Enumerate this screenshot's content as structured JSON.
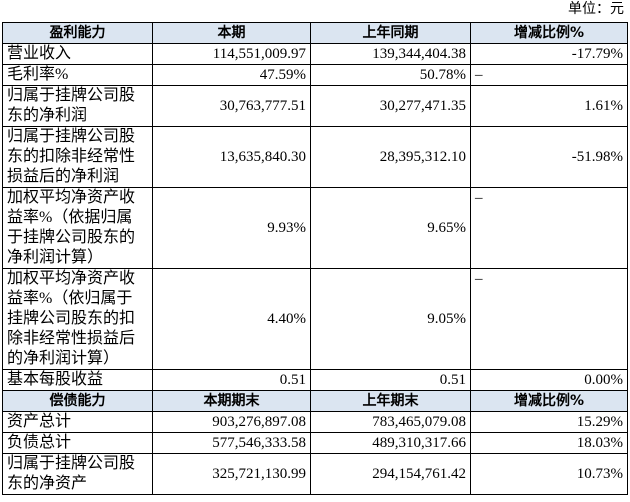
{
  "unit": "单位：元",
  "profitability": {
    "header": [
      "盈利能力",
      "本期",
      "上年同期",
      "增减比例%"
    ],
    "rows": [
      [
        "营业收入",
        "114,551,009.97",
        "139,344,404.38",
        "-17.79%"
      ],
      [
        "毛利率%",
        "47.59%",
        "50.78%",
        "–"
      ],
      [
        "归属于挂牌公司股东的净利润",
        "30,763,777.51",
        "30,277,471.35",
        "1.61%"
      ],
      [
        "归属于挂牌公司股东的扣除非经常性损益后的净利润",
        "13,635,840.30",
        "28,395,312.10",
        "-51.98%"
      ],
      [
        "加权平均净资产收益率%（依据归属于挂牌公司股东的净利润计算）",
        "9.93%",
        "9.65%",
        "–"
      ],
      [
        "加权平均净资产收益率%（依归属于挂牌公司股东的扣除非经常性损益后的净利润计算）",
        "4.40%",
        "9.05%",
        "–"
      ],
      [
        "基本每股收益",
        "0.51",
        "0.51",
        "0.00%"
      ]
    ]
  },
  "solvency": {
    "header": [
      "偿债能力",
      "本期期末",
      "上年期末",
      "增减比例%"
    ],
    "rows": [
      [
        "资产总计",
        "903,276,897.08",
        "783,465,079.08",
        "15.29%"
      ],
      [
        "负债总计",
        "577,546,333.58",
        "489,310,317.66",
        "18.03%"
      ],
      [
        "归属于挂牌公司股东的净资产",
        "325,721,130.99",
        "294,154,761.42",
        "10.73%"
      ]
    ]
  }
}
